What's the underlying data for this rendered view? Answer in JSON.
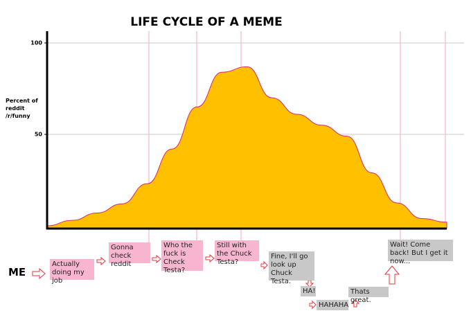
{
  "chart_data": {
    "type": "area",
    "title": "LIFE CYCLE OF A MEME",
    "ylabel": "Percent of reddit /r/funny",
    "categories": [
      null,
      null,
      null,
      null,
      null,
      null,
      null,
      null,
      null,
      null,
      null,
      null,
      null,
      null,
      null,
      null,
      null
    ],
    "values": [
      0,
      3,
      7,
      12,
      23,
      42,
      65,
      84,
      87,
      70,
      61,
      55,
      49,
      29,
      12.5,
      4,
      2
    ],
    "color": "#ffc000",
    "ylim": [
      0,
      105
    ],
    "yticks": [
      50,
      100
    ],
    "grid": true,
    "me_label": "ME",
    "annotations": [
      "Actually doing my job",
      "Gonna check reddit",
      "Who the fuck is Check Testa?",
      "Still with the Chuck Testa?",
      "Fine, I'll go look up Chuck Testa.",
      "HA!",
      "HAHAHA",
      "Thats great.",
      "Wait!  Come back! But I get it now..."
    ]
  }
}
